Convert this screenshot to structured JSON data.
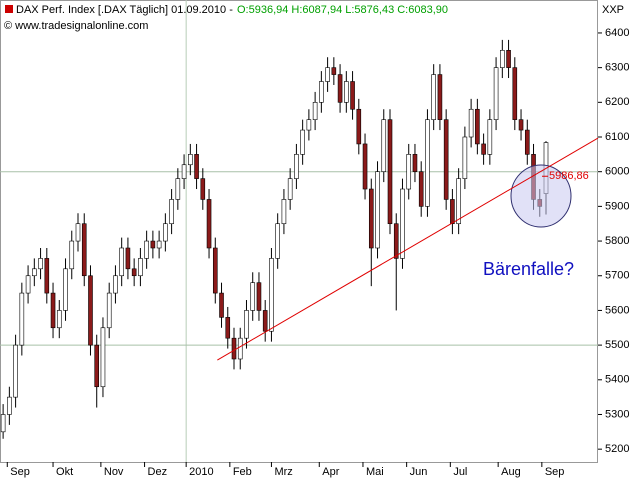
{
  "chart_data": {
    "type": "candlestick",
    "title": "DAX Perf. Index [.DAX Täglich] 01.09.2010 -",
    "ohlc_text": "O:5936,94 H:6087,94 L:5876,43 C:6083,90",
    "copyright": "© www.tradesignalonline.com",
    "axis_label": "XXP",
    "annotation": "Bärenfalle?",
    "price_label": {
      "value": 5986.86,
      "label": "5986,86"
    },
    "up_color": "#ffffff",
    "down_color": "#8b1a1a",
    "x": [
      0,
      3,
      6,
      9,
      12,
      15,
      18,
      21,
      24,
      27,
      30,
      33,
      36,
      39,
      42,
      45,
      48,
      51,
      54,
      57,
      60,
      63,
      66,
      69,
      72,
      75,
      78,
      81,
      84,
      87,
      90,
      93,
      96,
      99,
      102,
      105,
      108,
      111,
      114,
      117,
      120,
      123,
      126,
      129,
      132,
      135,
      138,
      141,
      144,
      147,
      150,
      153,
      156,
      159,
      162,
      165,
      168,
      171,
      174,
      177,
      180,
      183,
      186,
      189,
      192,
      195,
      198,
      201,
      204,
      207,
      210,
      213,
      216,
      219,
      222,
      225,
      228,
      231,
      234,
      237,
      240,
      243,
      246,
      249,
      252,
      255,
      258,
      261
    ],
    "open": [
      5250,
      5300,
      5350,
      5500,
      5650,
      5700,
      5720,
      5750,
      5650,
      5550,
      5600,
      5720,
      5800,
      5850,
      5700,
      5500,
      5380,
      5550,
      5650,
      5700,
      5780,
      5720,
      5700,
      5750,
      5800,
      5780,
      5800,
      5850,
      5920,
      5980,
      6020,
      6050,
      5980,
      5920,
      5780,
      5650,
      5580,
      5520,
      5460,
      5520,
      5600,
      5680,
      5600,
      5540,
      5750,
      5850,
      5920,
      5980,
      6050,
      6120,
      6150,
      6200,
      6260,
      6300,
      6280,
      6200,
      6260,
      6180,
      6080,
      5950,
      5780,
      6000,
      6150,
      5850,
      5750,
      5950,
      6050,
      6000,
      5900,
      6150,
      6280,
      6150,
      5920,
      5850,
      5980,
      6100,
      6180,
      6080,
      6050,
      6150,
      6300,
      6350,
      6300,
      6150,
      6120,
      6050,
      5920,
      5936.94
    ],
    "high": [
      5330,
      5380,
      5530,
      5680,
      5730,
      5750,
      5780,
      5780,
      5680,
      5630,
      5750,
      5830,
      5880,
      5880,
      5730,
      5530,
      5580,
      5680,
      5730,
      5810,
      5810,
      5750,
      5780,
      5830,
      5830,
      5830,
      5880,
      5950,
      6010,
      6050,
      6080,
      6080,
      6010,
      5950,
      5810,
      5680,
      5610,
      5550,
      5550,
      5630,
      5710,
      5710,
      5630,
      5780,
      5880,
      5950,
      6010,
      6080,
      6150,
      6180,
      6230,
      6290,
      6330,
      6330,
      6310,
      6290,
      6290,
      6210,
      6110,
      5980,
      6030,
      6180,
      6180,
      5880,
      5980,
      6080,
      6080,
      6030,
      6180,
      6310,
      6310,
      6180,
      5950,
      6010,
      6130,
      6210,
      6210,
      6110,
      6180,
      6330,
      6380,
      6380,
      6330,
      6180,
      6150,
      6080,
      5950,
      6087.94
    ],
    "low": [
      5230,
      5270,
      5320,
      5470,
      5620,
      5670,
      5690,
      5620,
      5520,
      5520,
      5570,
      5690,
      5770,
      5670,
      5470,
      5320,
      5350,
      5520,
      5620,
      5670,
      5690,
      5670,
      5670,
      5720,
      5750,
      5750,
      5770,
      5820,
      5890,
      5950,
      5990,
      5950,
      5890,
      5750,
      5620,
      5550,
      5490,
      5430,
      5430,
      5490,
      5570,
      5570,
      5510,
      5510,
      5720,
      5820,
      5890,
      5950,
      6020,
      6090,
      6120,
      6170,
      6230,
      6250,
      6170,
      6170,
      6150,
      6050,
      5920,
      5670,
      5750,
      5970,
      5820,
      5600,
      5720,
      5920,
      5970,
      5870,
      5870,
      6120,
      6120,
      5890,
      5820,
      5820,
      5950,
      6070,
      6050,
      6020,
      6020,
      6120,
      6270,
      6270,
      6120,
      6090,
      6020,
      5890,
      5870,
      5876.43
    ],
    "close": [
      5300,
      5350,
      5500,
      5650,
      5700,
      5720,
      5750,
      5650,
      5550,
      5600,
      5720,
      5800,
      5850,
      5700,
      5500,
      5380,
      5550,
      5650,
      5700,
      5780,
      5720,
      5700,
      5750,
      5800,
      5780,
      5800,
      5850,
      5920,
      5980,
      6020,
      6050,
      5980,
      5920,
      5780,
      5650,
      5580,
      5520,
      5460,
      5520,
      5600,
      5680,
      5600,
      5540,
      5750,
      5850,
      5920,
      5980,
      6050,
      6120,
      6150,
      6200,
      6260,
      6300,
      6280,
      6200,
      6260,
      6180,
      6080,
      5950,
      5780,
      6000,
      6150,
      5850,
      5750,
      5950,
      6050,
      6000,
      5900,
      6150,
      6280,
      6150,
      5920,
      5850,
      5980,
      6100,
      6180,
      6080,
      6050,
      6150,
      6300,
      6350,
      6300,
      6150,
      6120,
      6050,
      5920,
      5900,
      6083.9
    ],
    "trendline": {
      "x": [
        103,
        286
      ],
      "values": [
        5457,
        6097
      ],
      "color": "#e00000"
    },
    "reference_lines": [
      6000,
      5500
    ],
    "xlim": [
      -1.5,
      286
    ],
    "xticks": [
      {
        "value": 2,
        "label": "Sep"
      },
      {
        "value": 24,
        "label": "Okt"
      },
      {
        "value": 47,
        "label": "Nov"
      },
      {
        "value": 68,
        "label": "Dez"
      },
      {
        "value": 88,
        "label": "2010"
      },
      {
        "value": 109,
        "label": "Feb"
      },
      {
        "value": 129,
        "label": "Mrz"
      },
      {
        "value": 152,
        "label": "Apr"
      },
      {
        "value": 173,
        "label": "Mai"
      },
      {
        "value": 194,
        "label": "Jun"
      },
      {
        "value": 215,
        "label": "Jul"
      },
      {
        "value": 238,
        "label": "Aug"
      },
      {
        "value": 259,
        "label": "Sep"
      }
    ],
    "ylim": [
      5163,
      6495
    ],
    "yticks": [
      5200,
      5300,
      5400,
      5500,
      5600,
      5700,
      5800,
      5900,
      6000,
      6100,
      6200,
      6300,
      6400
    ]
  }
}
